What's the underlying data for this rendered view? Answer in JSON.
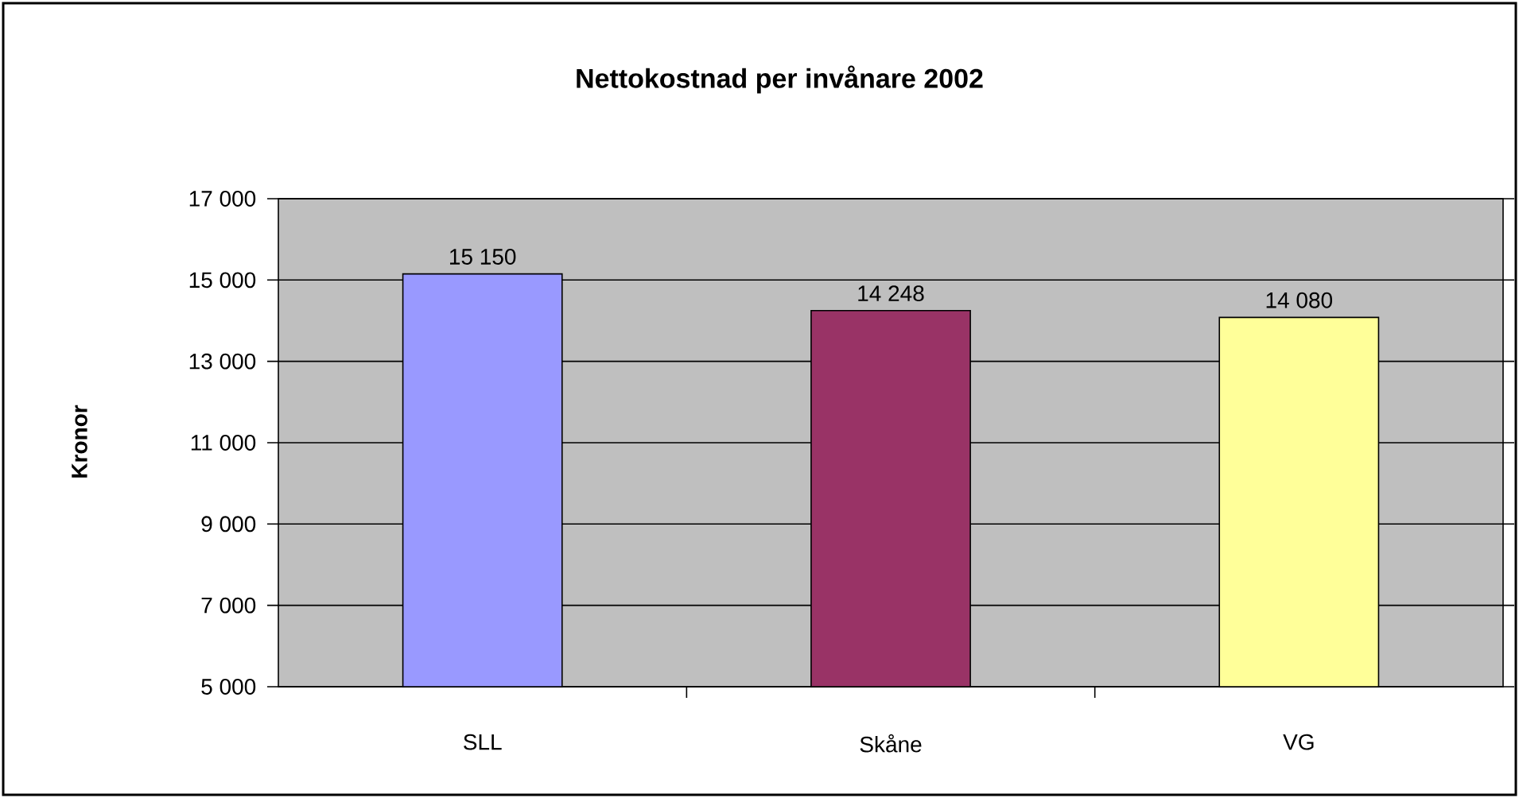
{
  "chart_data": {
    "type": "bar",
    "title": "Nettokostnad per invånare 2002",
    "ylabel": "Kronor",
    "categories": [
      "SLL",
      "Skåne",
      "VG"
    ],
    "values": [
      15150,
      14248,
      14080
    ],
    "colors": [
      "#9999ff",
      "#993366",
      "#ffff99"
    ],
    "value_labels": [
      "15 150",
      "14 248",
      "14 080"
    ],
    "ylim": [
      5000,
      17000
    ],
    "yticks": [
      {
        "value": 5000,
        "label": "5 000"
      },
      {
        "value": 7000,
        "label": "7 000"
      },
      {
        "value": 9000,
        "label": "9 000"
      },
      {
        "value": 11000,
        "label": "11 000"
      },
      {
        "value": 13000,
        "label": "13 000"
      },
      {
        "value": 15000,
        "label": "15 000"
      },
      {
        "value": 17000,
        "label": "17 000"
      }
    ],
    "grid": "y"
  }
}
